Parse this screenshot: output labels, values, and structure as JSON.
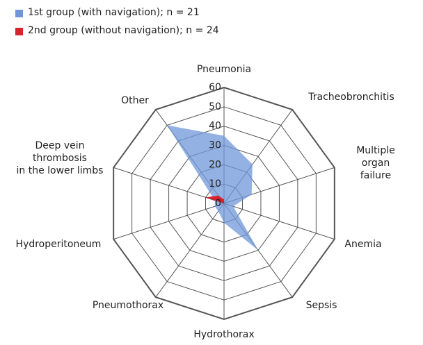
{
  "chart_data": {
    "type": "radar",
    "categories": [
      "Pneumonia",
      "Tracheobronchitis",
      "Multiple organ\nfailure",
      "Anemia",
      "Sepsis",
      "Hydrothorax",
      "Pneumothorax",
      "Hydroperitoneum",
      "Deep vein\nthrombosis\nin the lower limbs",
      "Other"
    ],
    "series": [
      {
        "name": "1st group (with navigation); n = 21",
        "color": "#6f97d8",
        "values": [
          35,
          25,
          15,
          5,
          30,
          10,
          5,
          5,
          5,
          50
        ]
      },
      {
        "name": "2nd group (without navigation); n = 24",
        "color": "#d9222e",
        "values": [
          2,
          0,
          0,
          0,
          0,
          0,
          0,
          0,
          10,
          5
        ]
      }
    ],
    "ylim": [
      0,
      60
    ],
    "yticks": [
      0,
      10,
      20,
      30,
      40,
      50,
      60
    ],
    "grid": true,
    "legend": "top-left"
  }
}
